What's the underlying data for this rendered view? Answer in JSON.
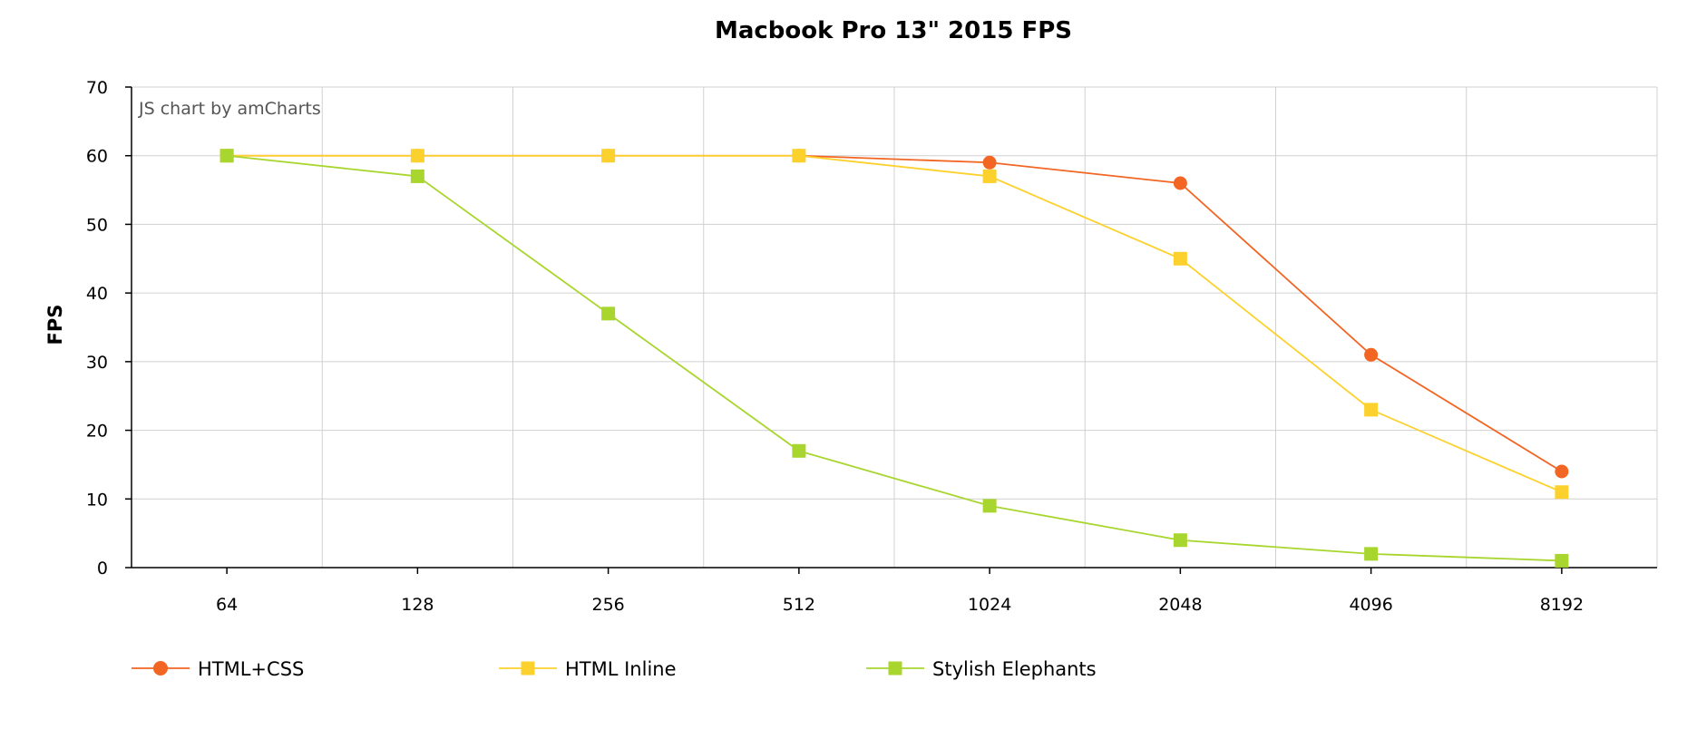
{
  "chart_data": {
    "type": "line",
    "title": "Macbook Pro 13\" 2015 FPS",
    "xlabel": "",
    "ylabel": "FPS",
    "credit": "JS chart by amCharts",
    "categories": [
      "64",
      "128",
      "256",
      "512",
      "1024",
      "2048",
      "4096",
      "8192"
    ],
    "ylim": [
      0,
      70
    ],
    "yticks": [
      0,
      10,
      20,
      30,
      40,
      50,
      60,
      70
    ],
    "grid": true,
    "legend_position": "bottom-left",
    "series": [
      {
        "name": "HTML+CSS",
        "color": "#f26522",
        "marker": "circle",
        "values": [
          60,
          60,
          60,
          60,
          59,
          56,
          31,
          14
        ]
      },
      {
        "name": "HTML Inline",
        "color": "#fdd12d",
        "marker": "square",
        "values": [
          60,
          60,
          60,
          60,
          57,
          45,
          23,
          11
        ]
      },
      {
        "name": "Stylish Elephants",
        "color": "#a8d62e",
        "marker": "square",
        "values": [
          60,
          57,
          37,
          17,
          9,
          4,
          2,
          1
        ]
      }
    ]
  }
}
